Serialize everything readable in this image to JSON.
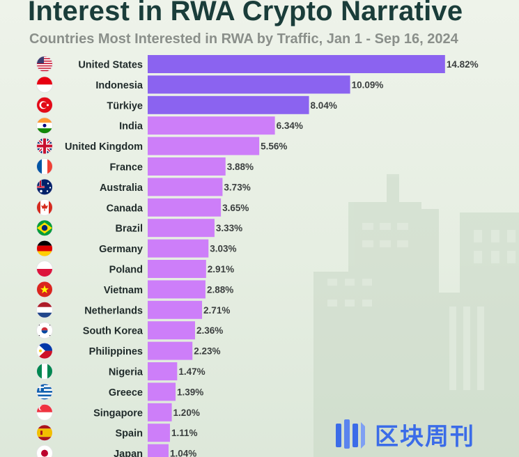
{
  "title": "Interest in RWA Crypto Narrative",
  "subtitle": "Countries Most Interested in RWA by Traffic, Jan 1 - Sep 16, 2024",
  "logo_text": "区块周刊",
  "colors": {
    "title": "#1a3d3a",
    "subtitle": "#8a8f8a",
    "bar_top": "#8b63f0",
    "bar_rest": "#cd7ef9",
    "label": "#1f2a2a",
    "value_label": "#3b3f3f",
    "logo": "#3b6ce8"
  },
  "chart_data": {
    "type": "bar",
    "orientation": "horizontal",
    "title": "Interest in RWA Crypto Narrative",
    "subtitle": "Countries Most Interested in RWA by Traffic, Jan 1 - Sep 16, 2024",
    "unit": "%",
    "highlight_top": 3,
    "categories": [
      "United States",
      "Indonesia",
      "Türkiye",
      "India",
      "United Kingdom",
      "France",
      "Australia",
      "Canada",
      "Brazil",
      "Germany",
      "Poland",
      "Vietnam",
      "Netherlands",
      "South Korea",
      "Philippines",
      "Nigeria",
      "Greece",
      "Singapore",
      "Spain",
      "Japan"
    ],
    "values": [
      14.82,
      10.09,
      8.04,
      6.34,
      5.56,
      3.88,
      3.73,
      3.65,
      3.33,
      3.03,
      2.91,
      2.88,
      2.71,
      2.36,
      2.23,
      1.47,
      1.39,
      1.2,
      1.11,
      1.04
    ],
    "value_labels": [
      "14.82%",
      "10.09%",
      "8.04%",
      "6.34%",
      "5.56%",
      "3.88%",
      "3.73%",
      "3.65%",
      "3.33%",
      "3.03%",
      "2.91%",
      "2.88%",
      "2.71%",
      "2.36%",
      "2.23%",
      "1.47%",
      "1.39%",
      "1.20%",
      "1.11%",
      "1.04%"
    ],
    "flags": [
      "flag-us-icon",
      "flag-id-icon",
      "flag-tr-icon",
      "flag-in-icon",
      "flag-gb-icon",
      "flag-fr-icon",
      "flag-au-icon",
      "flag-ca-icon",
      "flag-br-icon",
      "flag-de-icon",
      "flag-pl-icon",
      "flag-vn-icon",
      "flag-nl-icon",
      "flag-kr-icon",
      "flag-ph-icon",
      "flag-ng-icon",
      "flag-gr-icon",
      "flag-sg-icon",
      "flag-es-icon",
      "flag-jp-icon"
    ],
    "grid": false,
    "legend": "none"
  }
}
